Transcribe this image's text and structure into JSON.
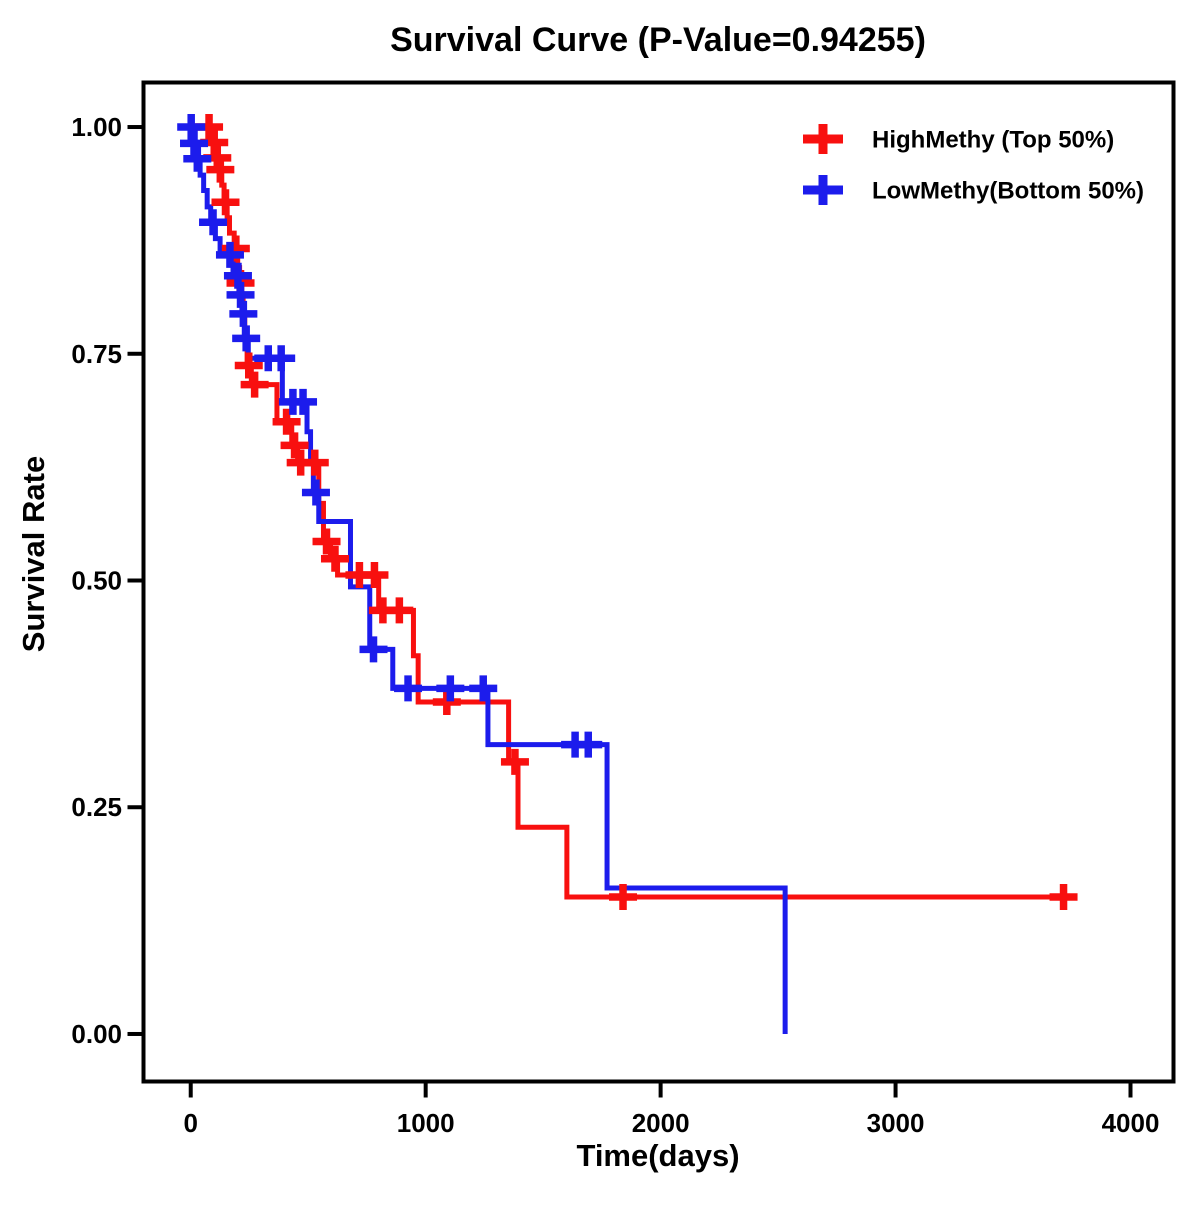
{
  "title": "Survival Curve (P-Value=0.94255)",
  "axes": {
    "x": {
      "label": "Time(days)",
      "ticks": [
        {
          "value": 0,
          "label": "0"
        },
        {
          "value": 1000,
          "label": "1000"
        },
        {
          "value": 2000,
          "label": "2000"
        },
        {
          "value": 3000,
          "label": "3000"
        },
        {
          "value": 4000,
          "label": "4000"
        }
      ]
    },
    "y": {
      "label": "Survival Rate",
      "ticks": [
        {
          "value": 0.0,
          "label": "0.00"
        },
        {
          "value": 0.25,
          "label": "0.25"
        },
        {
          "value": 0.5,
          "label": "0.50"
        },
        {
          "value": 0.75,
          "label": "0.75"
        },
        {
          "value": 1.0,
          "label": "1.00"
        }
      ]
    }
  },
  "legend": {
    "items": [
      {
        "label": "HighMethy (Top 50%)",
        "color": "#f8100f",
        "marker": "plus"
      },
      {
        "label": "LowMethy(Bottom 50%)",
        "color": "#1c1cec",
        "marker": "plus"
      }
    ]
  },
  "chart_data": {
    "type": "line",
    "subtype": "kaplan-meier-step",
    "title": "Survival Curve (P-Value=0.94255)",
    "p_value": "0.94255",
    "xlabel": "Time(days)",
    "ylabel": "Survival Rate",
    "xlim": [
      -201,
      4183
    ],
    "ylim": [
      -0.0524,
      1.0491
    ],
    "grid": false,
    "legend_position": "top-right-inside",
    "series": [
      {
        "name": "HighMethy (Top 50%)",
        "color": "#f8100f",
        "end_time": 3760,
        "steps": [
          [
            0,
            1.0
          ],
          [
            85,
            0.983
          ],
          [
            108,
            0.966
          ],
          [
            118,
            0.953
          ],
          [
            132,
            0.936
          ],
          [
            142,
            0.917
          ],
          [
            155,
            0.9
          ],
          [
            165,
            0.883
          ],
          [
            185,
            0.866
          ],
          [
            200,
            0.845
          ],
          [
            208,
            0.828
          ],
          [
            216,
            0.81
          ],
          [
            223,
            0.79
          ],
          [
            230,
            0.767
          ],
          [
            240,
            0.737
          ],
          [
            258,
            0.716
          ],
          [
            367,
            0.675
          ],
          [
            430,
            0.649
          ],
          [
            455,
            0.63
          ],
          [
            545,
            0.585
          ],
          [
            565,
            0.543
          ],
          [
            595,
            0.524
          ],
          [
            625,
            0.506
          ],
          [
            800,
            0.467
          ],
          [
            948,
            0.417
          ],
          [
            968,
            0.366
          ],
          [
            1353,
            0.3
          ],
          [
            1393,
            0.228
          ],
          [
            1601,
            0.151
          ]
        ],
        "censors": [
          [
            78,
            1.0
          ],
          [
            100,
            0.983
          ],
          [
            113,
            0.966
          ],
          [
            126,
            0.953
          ],
          [
            148,
            0.917
          ],
          [
            192,
            0.866
          ],
          [
            212,
            0.828
          ],
          [
            247,
            0.737
          ],
          [
            272,
            0.716
          ],
          [
            408,
            0.675
          ],
          [
            442,
            0.649
          ],
          [
            468,
            0.63
          ],
          [
            528,
            0.63
          ],
          [
            578,
            0.543
          ],
          [
            614,
            0.524
          ],
          [
            718,
            0.506
          ],
          [
            782,
            0.506
          ],
          [
            818,
            0.467
          ],
          [
            888,
            0.467
          ],
          [
            1090,
            0.366
          ],
          [
            1380,
            0.3
          ],
          [
            1840,
            0.151
          ],
          [
            3715,
            0.151
          ]
        ]
      },
      {
        "name": "LowMethy(Bottom 50%)",
        "color": "#1c1cec",
        "end_time": 2530,
        "steps": [
          [
            0,
            1.0
          ],
          [
            10,
            0.982
          ],
          [
            24,
            0.965
          ],
          [
            40,
            0.947
          ],
          [
            55,
            0.93
          ],
          [
            70,
            0.912
          ],
          [
            85,
            0.895
          ],
          [
            105,
            0.877
          ],
          [
            125,
            0.859
          ],
          [
            180,
            0.836
          ],
          [
            205,
            0.815
          ],
          [
            218,
            0.794
          ],
          [
            228,
            0.767
          ],
          [
            245,
            0.745
          ],
          [
            390,
            0.697
          ],
          [
            495,
            0.664
          ],
          [
            510,
            0.63
          ],
          [
            522,
            0.597
          ],
          [
            545,
            0.565
          ],
          [
            680,
            0.493
          ],
          [
            762,
            0.424
          ],
          [
            860,
            0.381
          ],
          [
            1265,
            0.319
          ],
          [
            1772,
            0.161
          ],
          [
            2530,
            0.0
          ]
        ],
        "censors": [
          [
            2,
            1.0
          ],
          [
            14,
            0.982
          ],
          [
            28,
            0.965
          ],
          [
            95,
            0.895
          ],
          [
            167,
            0.859
          ],
          [
            201,
            0.836
          ],
          [
            212,
            0.815
          ],
          [
            224,
            0.794
          ],
          [
            236,
            0.767
          ],
          [
            330,
            0.745
          ],
          [
            385,
            0.745
          ],
          [
            435,
            0.697
          ],
          [
            478,
            0.697
          ],
          [
            533,
            0.597
          ],
          [
            778,
            0.424
          ],
          [
            925,
            0.381
          ],
          [
            1105,
            0.381
          ],
          [
            1245,
            0.381
          ],
          [
            1636,
            0.319
          ],
          [
            1692,
            0.319
          ]
        ]
      }
    ]
  }
}
